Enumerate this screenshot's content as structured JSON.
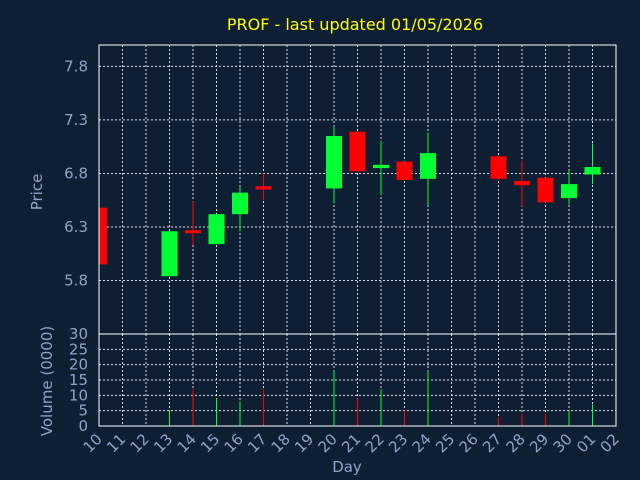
{
  "chart_data": {
    "type": "candlestick",
    "title": "PROF - last updated 01/05/2026",
    "xlabel": "Day",
    "ylabel_price": "Price",
    "ylabel_volume": "Volume (0000)",
    "categories": [
      "10",
      "11",
      "12",
      "13",
      "14",
      "15",
      "16",
      "17",
      "18",
      "19",
      "20",
      "21",
      "22",
      "23",
      "24",
      "25",
      "26",
      "27",
      "28",
      "29",
      "30",
      "01",
      "02"
    ],
    "price_ticks": [
      5.8,
      6.3,
      6.8,
      7.3,
      7.8
    ],
    "price_ylim": [
      5.3,
      8.0
    ],
    "volume_ticks": [
      0,
      5,
      10,
      15,
      20,
      25,
      30
    ],
    "volume_ylim": [
      0,
      30
    ],
    "grid": true,
    "colors": {
      "up": "#00ff33",
      "down": "#ff0000",
      "background": "#0f1f33",
      "text": "#8fa3c9",
      "title": "#ffff00"
    },
    "candles": [
      {
        "day": "10",
        "open": 6.48,
        "high": 6.48,
        "low": 5.95,
        "close": 5.95,
        "volume": 2.5
      },
      {
        "day": "13",
        "open": 5.84,
        "high": 6.26,
        "low": 5.84,
        "close": 6.26,
        "volume": 5
      },
      {
        "day": "14",
        "open": 6.27,
        "high": 6.54,
        "low": 6.13,
        "close": 6.25,
        "volume": 12
      },
      {
        "day": "15",
        "open": 6.14,
        "high": 6.42,
        "low": 6.14,
        "close": 6.42,
        "volume": 9
      },
      {
        "day": "16",
        "open": 6.42,
        "high": 6.68,
        "low": 6.26,
        "close": 6.62,
        "volume": 8
      },
      {
        "day": "17",
        "open": 6.68,
        "high": 6.8,
        "low": 6.55,
        "close": 6.65,
        "volume": 12
      },
      {
        "day": "20",
        "open": 6.66,
        "high": 7.24,
        "low": 6.52,
        "close": 7.15,
        "volume": 18
      },
      {
        "day": "21",
        "open": 7.19,
        "high": 7.19,
        "low": 6.82,
        "close": 6.82,
        "volume": 9
      },
      {
        "day": "22",
        "open": 6.85,
        "high": 7.1,
        "low": 6.6,
        "close": 6.88,
        "volume": 12
      },
      {
        "day": "23",
        "open": 6.91,
        "high": 6.91,
        "low": 6.74,
        "close": 6.74,
        "volume": 5
      },
      {
        "day": "24",
        "open": 6.75,
        "high": 7.18,
        "low": 6.5,
        "close": 6.99,
        "volume": 18
      },
      {
        "day": "27",
        "open": 6.96,
        "high": 6.96,
        "low": 6.74,
        "close": 6.75,
        "volume": 3
      },
      {
        "day": "28",
        "open": 6.73,
        "high": 6.92,
        "low": 6.49,
        "close": 6.69,
        "volume": 4
      },
      {
        "day": "29",
        "open": 6.76,
        "high": 6.76,
        "low": 6.53,
        "close": 6.53,
        "volume": 4
      },
      {
        "day": "30",
        "open": 6.57,
        "high": 6.83,
        "low": 6.51,
        "close": 6.7,
        "volume": 5
      },
      {
        "day": "01",
        "open": 6.79,
        "high": 7.08,
        "low": 6.7,
        "close": 6.86,
        "volume": 7
      }
    ]
  }
}
